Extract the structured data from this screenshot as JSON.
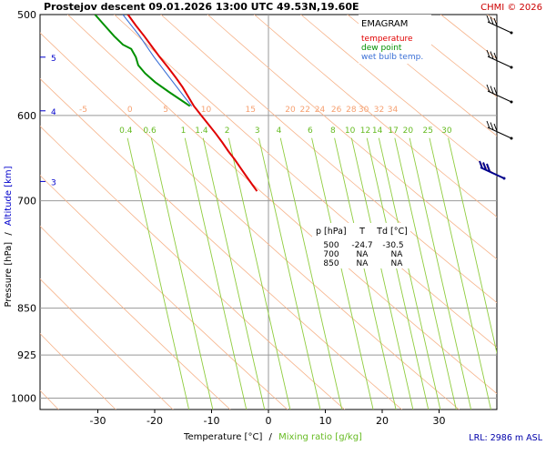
{
  "header": {
    "title": "Prostejov   descent   09.01.2026 13:00 UTC   49.53N,19.60E",
    "credit": "CHMI © 2026"
  },
  "legend": {
    "title": "EMAGRAM",
    "temperature": "temperature",
    "dew_point": "dew point",
    "wet_bulb": "wet bulb temp.",
    "colors": {
      "temperature": "#e00000",
      "dew_point": "#009000",
      "wet_bulb": "#3a6fd6"
    }
  },
  "axes": {
    "y_label_pressure": "Pressure [hPa]",
    "y_label_sep": "/",
    "y_label_altitude": "Altitude [km]",
    "x_label_temp": "Temperature [°C]",
    "x_label_sep": "/",
    "x_label_mix": "Mixing ratio [g/kg]",
    "lrl": "LRL: 2986 m ASL"
  },
  "table": {
    "headers": [
      "p [hPa]",
      "T",
      "Td [°C]"
    ],
    "rows": [
      [
        "500",
        "-24.7",
        "-30.5"
      ],
      [
        "700",
        "NA",
        "NA"
      ],
      [
        "850",
        "NA",
        "NA"
      ]
    ]
  },
  "chart_data": {
    "type": "line",
    "title": "Prostejov   descent   09.01.2026 13:00 UTC   49.53N,19.60E",
    "xlabel": "Temperature [°C] / Mixing ratio [g/kg]",
    "ylabel": "Pressure [hPa] / Altitude [km]",
    "xlim": [
      -39,
      40
    ],
    "ylim": [
      1025,
      500
    ],
    "y_scale": "log",
    "x_ticks": [
      -30,
      -20,
      -10,
      0,
      10,
      20,
      30
    ],
    "y_ticks": [
      500,
      600,
      700,
      850,
      925,
      1000
    ],
    "altitude_ticks": [
      {
        "km": "5",
        "p": 540
      },
      {
        "km": "4",
        "p": 595
      },
      {
        "km": "3",
        "p": 676
      }
    ],
    "dry_adiabat_labels": [
      {
        "label": "-5",
        "t": -36.7
      },
      {
        "label": "0",
        "t": -28.5
      },
      {
        "label": "5",
        "t": -22.2
      },
      {
        "label": "10",
        "t": -15.1
      },
      {
        "label": "15",
        "t": -7.3
      },
      {
        "label": "20",
        "t": -0.3
      },
      {
        "label": "22",
        "t": 2.3
      },
      {
        "label": "24",
        "t": 4.9
      },
      {
        "label": "26",
        "t": 7.8
      },
      {
        "label": "28",
        "t": 10.4
      },
      {
        "label": "30",
        "t": 12.6
      },
      {
        "label": "32",
        "t": 15.3
      },
      {
        "label": "34",
        "t": 17.7
      }
    ],
    "mixing_ratio_lines": [
      {
        "label": "0.4",
        "t": -32.6
      },
      {
        "label": "0.6",
        "t": -28.4
      },
      {
        "label": "1",
        "t": -22.5
      },
      {
        "label": "1.4",
        "t": -19.3
      },
      {
        "label": "2",
        "t": -14.8
      },
      {
        "label": "3",
        "t": -9.5
      },
      {
        "label": "4",
        "t": -5.7
      },
      {
        "label": "6",
        "t": -0.2
      },
      {
        "label": "8",
        "t": 3.8
      },
      {
        "label": "10",
        "t": 6.8
      },
      {
        "label": "12",
        "t": 9.5
      },
      {
        "label": "14",
        "t": 11.6
      },
      {
        "label": "17",
        "t": 14.4
      },
      {
        "label": "20",
        "t": 17.0
      },
      {
        "label": "25",
        "t": 20.5
      },
      {
        "label": "30",
        "t": 23.8
      }
    ],
    "series": [
      {
        "name": "temperature",
        "color": "#e00000",
        "points": [
          [
            500,
            -24.7
          ],
          [
            510,
            -24.0
          ],
          [
            520,
            -23.2
          ],
          [
            530,
            -22.5
          ],
          [
            540,
            -21.8
          ],
          [
            550,
            -21.0
          ],
          [
            560,
            -20.3
          ],
          [
            570,
            -19.7
          ],
          [
            580,
            -19.3
          ],
          [
            590,
            -18.9
          ],
          [
            600,
            -18.2
          ],
          [
            610,
            -17.5
          ],
          [
            620,
            -16.8
          ],
          [
            630,
            -16.2
          ],
          [
            640,
            -15.7
          ],
          [
            650,
            -15.1
          ],
          [
            660,
            -14.6
          ],
          [
            670,
            -14.1
          ],
          [
            680,
            -13.6
          ],
          [
            688,
            -13.2
          ]
        ]
      },
      {
        "name": "dew point",
        "color": "#009000",
        "points": [
          [
            500,
            -30.5
          ],
          [
            510,
            -29.5
          ],
          [
            520,
            -28.5
          ],
          [
            528,
            -27.5
          ],
          [
            532,
            -26.3
          ],
          [
            540,
            -26.0
          ],
          [
            548,
            -26.1
          ],
          [
            556,
            -25.4
          ],
          [
            565,
            -24.2
          ],
          [
            575,
            -22.4
          ],
          [
            585,
            -20.5
          ],
          [
            590,
            -19.6
          ]
        ]
      },
      {
        "name": "wet bulb temp.",
        "color": "#3a6fd6",
        "points": [
          [
            500,
            -25.6
          ],
          [
            520,
            -24.0
          ],
          [
            540,
            -22.8
          ],
          [
            560,
            -21.4
          ],
          [
            580,
            -20.0
          ],
          [
            590,
            -19.3
          ]
        ]
      }
    ]
  }
}
